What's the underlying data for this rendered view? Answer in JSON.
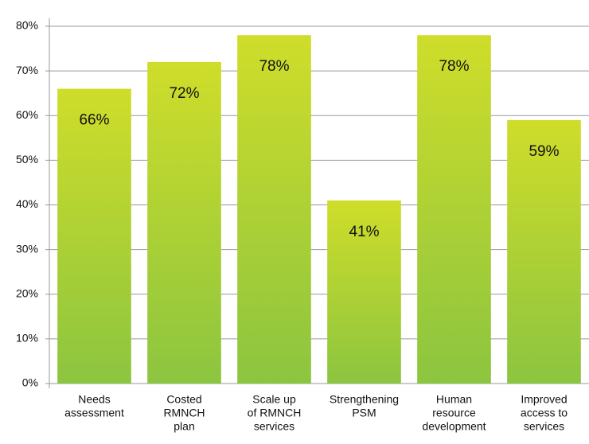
{
  "chart_data": {
    "type": "bar",
    "categories": [
      [
        "Needs",
        "assessment"
      ],
      [
        "Costed",
        "RMNCH",
        "plan"
      ],
      [
        "Scale up",
        "of RMNCH",
        "services"
      ],
      [
        "Strengthening",
        "PSM"
      ],
      [
        "Human",
        "resource",
        "development"
      ],
      [
        "Improved",
        "access to",
        "services"
      ]
    ],
    "values": [
      66,
      72,
      78,
      41,
      78,
      59
    ],
    "value_labels": [
      "66%",
      "72%",
      "78%",
      "41%",
      "78%",
      "59%"
    ],
    "colors": [
      "#cfdd2a",
      "#8cc540"
    ],
    "ylim": [
      0,
      80
    ],
    "yticks": [
      {
        "value": 0,
        "label": "0%"
      },
      {
        "value": 10,
        "label": "10%"
      },
      {
        "value": 20,
        "label": "20%"
      },
      {
        "value": 30,
        "label": "30%"
      },
      {
        "value": 40,
        "label": "40%"
      },
      {
        "value": 50,
        "label": "50%"
      },
      {
        "value": 60,
        "label": "60%"
      },
      {
        "value": 70,
        "label": "70%"
      },
      {
        "value": 80,
        "label": "80%"
      }
    ],
    "grid": true
  }
}
